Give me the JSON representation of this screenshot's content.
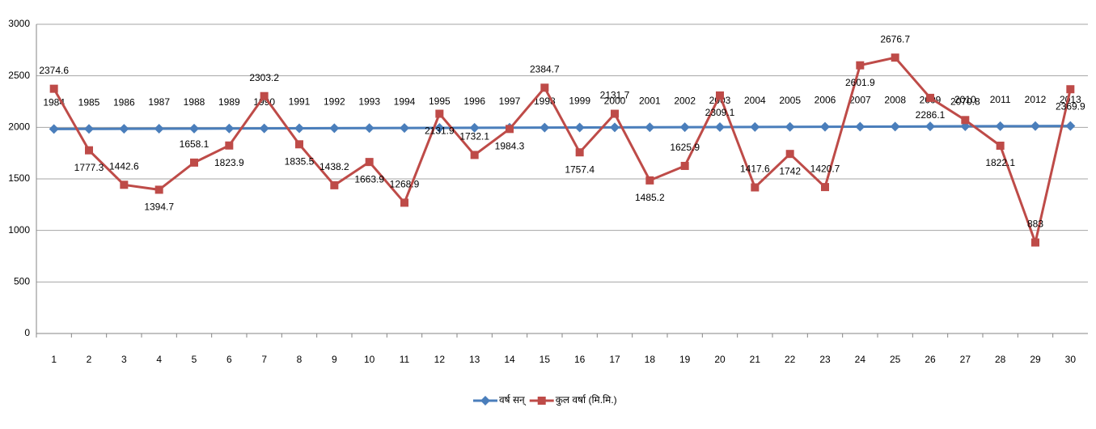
{
  "chart_data": {
    "type": "line",
    "categories": [
      1,
      2,
      3,
      4,
      5,
      6,
      7,
      8,
      9,
      10,
      11,
      12,
      13,
      14,
      15,
      16,
      17,
      18,
      19,
      20,
      21,
      22,
      23,
      24,
      25,
      26,
      27,
      28,
      29,
      30
    ],
    "series": [
      {
        "name": "वर्ष सन्",
        "color": "#4a7ebb",
        "marker": "diamond",
        "values": [
          1984,
          1985,
          1986,
          1987,
          1988,
          1989,
          1990,
          1991,
          1992,
          1993,
          1994,
          1995,
          1996,
          1997,
          1998,
          1999,
          2000,
          2001,
          2002,
          2003,
          2004,
          2005,
          2006,
          2007,
          2008,
          2009,
          2010,
          2011,
          2012,
          2013
        ]
      },
      {
        "name": "कुल वर्षा (मि.मि.)",
        "color": "#be4b48",
        "marker": "square",
        "values": [
          2374.6,
          1777.3,
          1442.6,
          1394.7,
          1658.1,
          1823.9,
          2303.2,
          1835.5,
          1438.2,
          1663.9,
          1268.9,
          2131.9,
          1732.1,
          1984.3,
          2384.7,
          1757.4,
          2131.7,
          1485.2,
          1625.9,
          2309.1,
          1417.6,
          1742,
          1420.7,
          2601.9,
          2676.7,
          2286.1,
          2070.8,
          1822.1,
          883,
          2369.9
        ]
      }
    ],
    "ylim": [
      0,
      3000
    ],
    "yticks": [
      0,
      500,
      1000,
      1500,
      2000,
      2500,
      3000
    ],
    "grid": true,
    "legend": "bottom"
  }
}
